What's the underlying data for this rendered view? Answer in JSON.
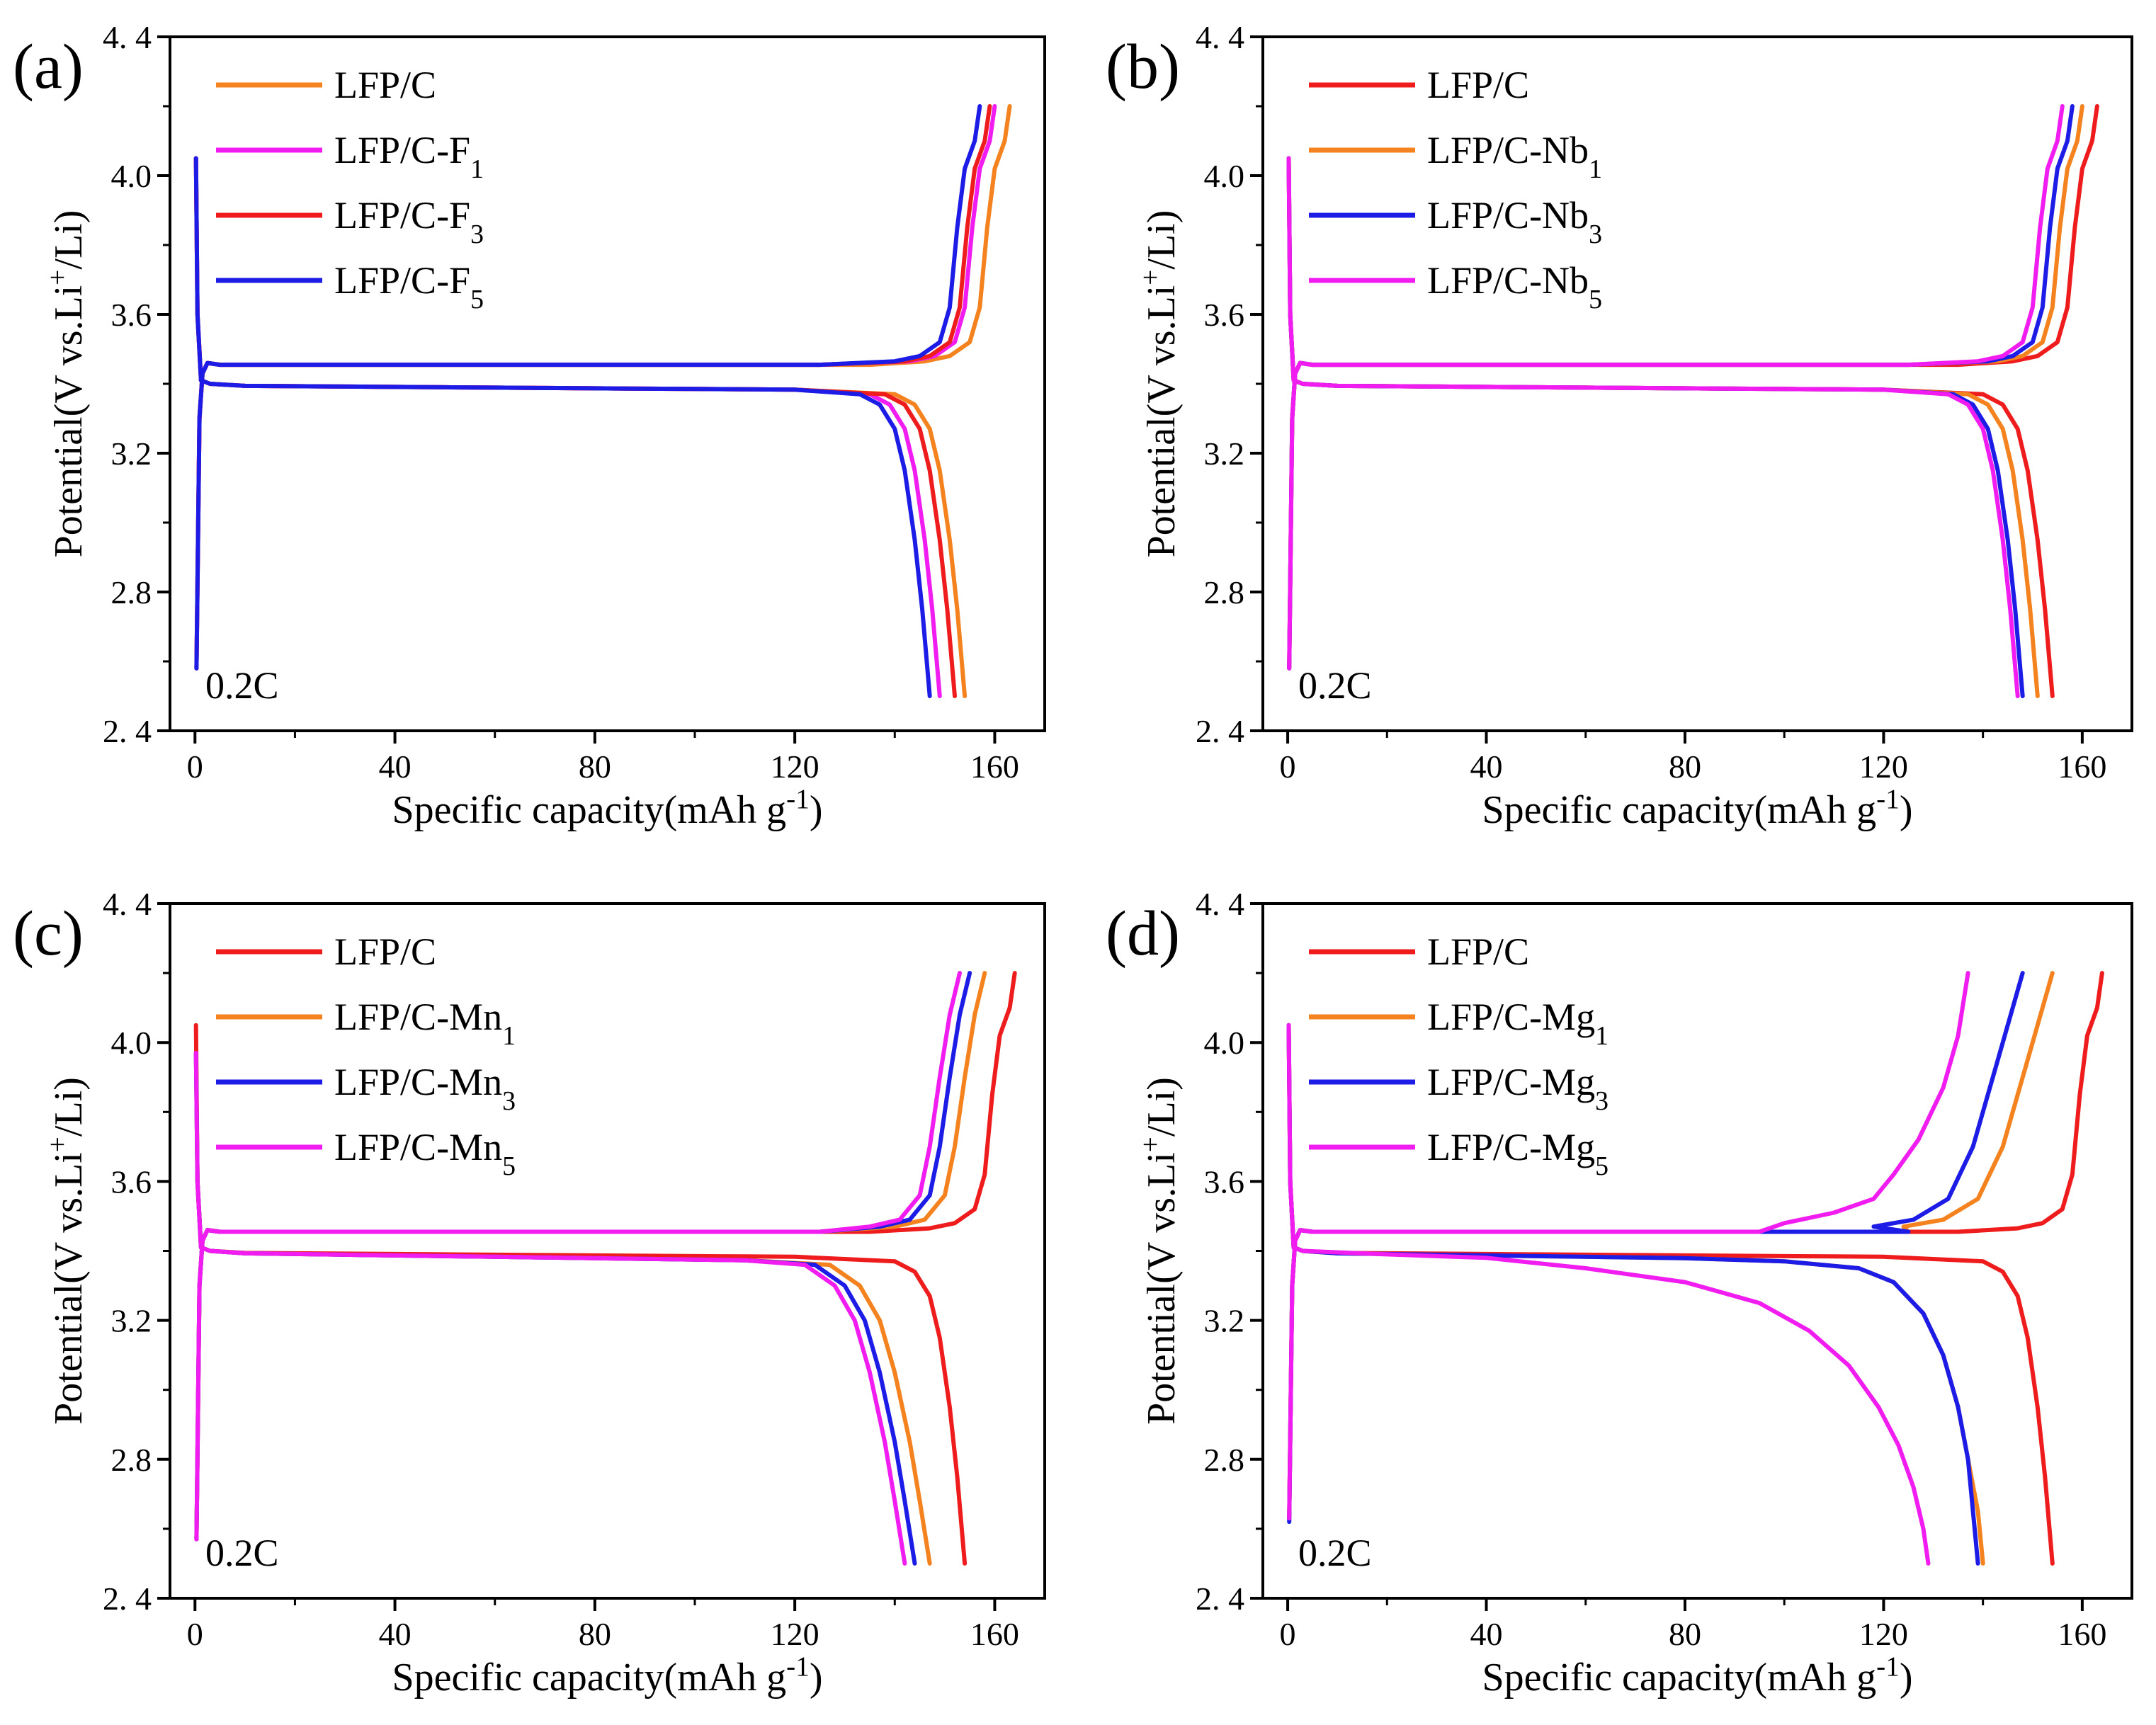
{
  "colors": {
    "red": "#ee1c1c",
    "orange": "#f4821e",
    "blue": "#1c1ce6",
    "magenta": "#f01cf0"
  },
  "chart_data": [
    {
      "type": "line",
      "panel_label": "(a)",
      "rate_label": "0.2C",
      "xlabel": "Specific capacity(mAh g",
      "xlabel_sup": "-1",
      "xlabel_end": ")",
      "ylabel": "Potential(V vs.Li",
      "ylabel_sup": "+",
      "ylabel_end": "/Li)",
      "xlim": [
        -5,
        170
      ],
      "ylim": [
        2.4,
        4.4
      ],
      "xticks": [
        0,
        40,
        80,
        120,
        160
      ],
      "xtick_labels": [
        "0",
        "40",
        "80",
        "120",
        "160"
      ],
      "yticks": [
        2.4,
        2.8,
        3.2,
        3.6,
        4.0,
        4.4
      ],
      "ytick_labels": [
        "2. 4",
        "2.8",
        "3.2",
        "3.6",
        "4.0",
        "4. 4"
      ],
      "legend_position": "top-left",
      "series": [
        {
          "name": "LFP/C",
          "sub": "",
          "color": "#f4821e",
          "charge_end": 163,
          "discharge_end": 154,
          "knee_shift": 0,
          "curve": "sharp",
          "low_start": 2.58,
          "high_start": 4.05
        },
        {
          "name": "LFP/C-F",
          "sub": "1",
          "color": "#f01cf0",
          "charge_end": 160,
          "discharge_end": 149,
          "knee_shift": 2.6,
          "curve": "sharp",
          "low_start": 2.58,
          "high_start": 4.05
        },
        {
          "name": "LFP/C-F",
          "sub": "3",
          "color": "#ee1c1c",
          "charge_end": 159,
          "discharge_end": 152,
          "knee_shift": 1.2,
          "curve": "sharp",
          "low_start": 2.58,
          "high_start": 4.05
        },
        {
          "name": "LFP/C-F",
          "sub": "5",
          "color": "#1c1ce6",
          "charge_end": 157,
          "discharge_end": 147,
          "knee_shift": 4.5,
          "curve": "sharp",
          "low_start": 2.58,
          "high_start": 4.05
        }
      ]
    },
    {
      "type": "line",
      "panel_label": "(b)",
      "rate_label": "0.2C",
      "xlabel": "Specific capacity(mAh g",
      "xlabel_sup": "-1",
      "xlabel_end": ")",
      "ylabel": "Potential(V vs.Li",
      "ylabel_sup": "+",
      "ylabel_end": "/Li)",
      "xlim": [
        -5,
        170
      ],
      "ylim": [
        2.4,
        4.4
      ],
      "xticks": [
        0,
        40,
        80,
        120,
        160
      ],
      "xtick_labels": [
        "0",
        "40",
        "80",
        "120",
        "160"
      ],
      "yticks": [
        2.4,
        2.8,
        3.2,
        3.6,
        4.0,
        4.4
      ],
      "ytick_labels": [
        "2. 4",
        "2.8",
        "3.2",
        "3.6",
        "4.0",
        "4. 4"
      ],
      "legend_position": "top-left",
      "series": [
        {
          "name": "LFP/C",
          "sub": "",
          "color": "#ee1c1c",
          "charge_end": 163,
          "discharge_end": 154,
          "knee_shift": 0,
          "curve": "sharp",
          "low_start": 2.58,
          "high_start": 4.05
        },
        {
          "name": "LFP/C-Nb",
          "sub": "1",
          "color": "#f4821e",
          "charge_end": 160,
          "discharge_end": 151,
          "knee_shift": 2.5,
          "curve": "sharp",
          "low_start": 2.58,
          "high_start": 4.05
        },
        {
          "name": "LFP/C-Nb",
          "sub": "3",
          "color": "#1c1ce6",
          "charge_end": 158,
          "discharge_end": 148,
          "knee_shift": 4.5,
          "curve": "sharp",
          "low_start": 2.58,
          "high_start": 4.05
        },
        {
          "name": "LFP/C-Nb",
          "sub": "5",
          "color": "#f01cf0",
          "charge_end": 156,
          "discharge_end": 147,
          "knee_shift": 5.5,
          "curve": "sharp",
          "low_start": 2.58,
          "high_start": 4.05
        }
      ]
    },
    {
      "type": "line",
      "panel_label": "(c)",
      "rate_label": "0.2C",
      "xlabel": "Specific capacity(mAh g",
      "xlabel_sup": "-1",
      "xlabel_end": ")",
      "ylabel": "Potential(V vs.Li",
      "ylabel_sup": "+",
      "ylabel_end": "/Li)",
      "xlim": [
        -5,
        170
      ],
      "ylim": [
        2.4,
        4.4
      ],
      "xticks": [
        0,
        40,
        80,
        120,
        160
      ],
      "xtick_labels": [
        "0",
        "40",
        "80",
        "120",
        "160"
      ],
      "yticks": [
        2.4,
        2.8,
        3.2,
        3.6,
        4.0,
        4.4
      ],
      "ytick_labels": [
        "2. 4",
        "2.8",
        "3.2",
        "3.6",
        "4.0",
        "4. 4"
      ],
      "legend_position": "top-left",
      "series": [
        {
          "name": "LFP/C",
          "sub": "",
          "color": "#ee1c1c",
          "charge_end": 164,
          "discharge_end": 154,
          "knee_shift": 0,
          "curve": "sharp",
          "low_start": 2.57,
          "high_start": 4.05
        },
        {
          "name": "LFP/C-Mn",
          "sub": "1",
          "color": "#f4821e",
          "charge_end": 158,
          "discharge_end": 147,
          "knee_shift": 4,
          "curve": "medium",
          "low_start": 2.57,
          "high_start": 3.97
        },
        {
          "name": "LFP/C-Mn",
          "sub": "3",
          "color": "#1c1ce6",
          "charge_end": 155,
          "discharge_end": 144,
          "knee_shift": 6.5,
          "curve": "medium",
          "low_start": 2.57,
          "high_start": 3.97
        },
        {
          "name": "LFP/C-Mn",
          "sub": "5",
          "color": "#f01cf0",
          "charge_end": 153,
          "discharge_end": 142,
          "knee_shift": 9,
          "curve": "medium",
          "low_start": 2.57,
          "high_start": 3.97
        }
      ]
    },
    {
      "type": "line",
      "panel_label": "(d)",
      "rate_label": "0.2C",
      "xlabel": "Specific capacity(mAh g",
      "xlabel_sup": "-1",
      "xlabel_end": ")",
      "ylabel": "Potential(V vs.Li",
      "ylabel_sup": "+",
      "ylabel_end": "/Li)",
      "xlim": [
        -5,
        170
      ],
      "ylim": [
        2.4,
        4.4
      ],
      "xticks": [
        0,
        40,
        80,
        120,
        160
      ],
      "xtick_labels": [
        "0",
        "40",
        "80",
        "120",
        "160"
      ],
      "yticks": [
        2.4,
        2.8,
        3.2,
        3.6,
        4.0,
        4.4
      ],
      "ytick_labels": [
        "2. 4",
        "2.8",
        "3.2",
        "3.6",
        "4.0",
        "4. 4"
      ],
      "legend_position": "top-left",
      "series": [
        {
          "name": "LFP/C",
          "sub": "",
          "color": "#ee1c1c",
          "charge_end": 164,
          "discharge_end": 154,
          "knee_shift": 0,
          "curve": "sharp",
          "low_start": 2.63,
          "high_start": 4.05
        },
        {
          "name": "LFP/C-Mg",
          "sub": "1",
          "color": "#f4821e",
          "charge_end": 154,
          "discharge_end": 140,
          "knee_shift": 8,
          "curve": "gradual",
          "low_start": 2.63,
          "high_start": 4.05
        },
        {
          "name": "LFP/C-Mg",
          "sub": "3",
          "color": "#1c1ce6",
          "charge_end": 148,
          "discharge_end": 139,
          "knee_shift": 12,
          "curve": "gradual",
          "low_start": 2.62,
          "high_start": 4.05
        },
        {
          "name": "LFP/C-Mg",
          "sub": "5",
          "color": "#f01cf0",
          "charge_end": 137,
          "discharge_end": 129,
          "knee_shift": 22,
          "curve": "very_gradual",
          "low_start": 2.63,
          "high_start": 4.05
        }
      ]
    }
  ]
}
